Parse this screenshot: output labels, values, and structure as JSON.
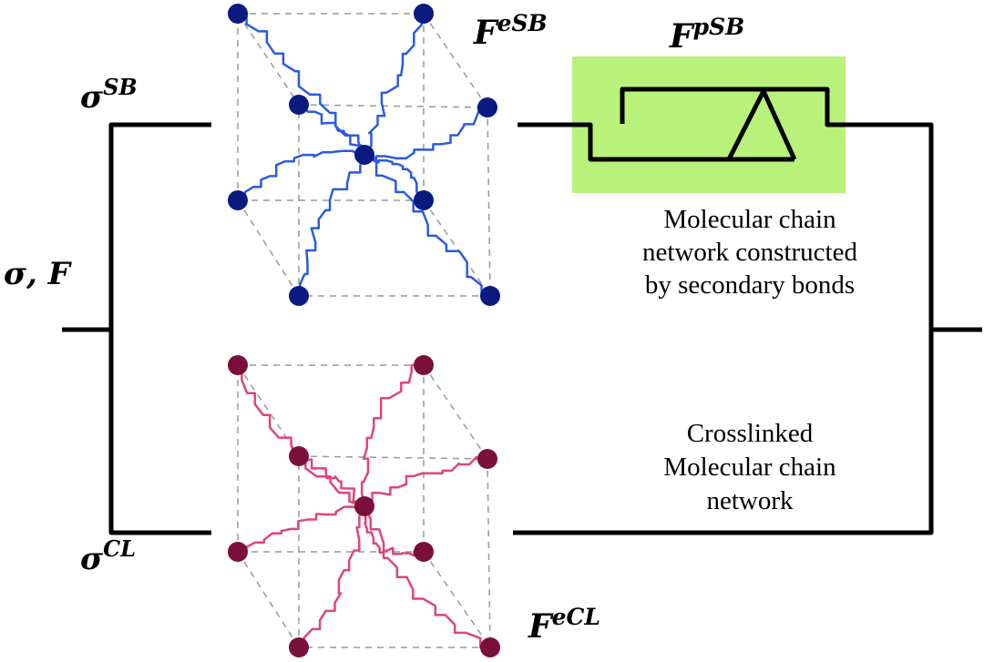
{
  "labels": {
    "sigma_sb": {
      "base": "σ",
      "sup": "SB"
    },
    "sigma_f": "σ, F",
    "sigma_cl": {
      "base": "σ",
      "sup": "CL"
    },
    "f_esb": {
      "base": "F",
      "sup": "eSB"
    },
    "f_psb": {
      "base": "F",
      "sup": "pSB"
    },
    "f_ecl": {
      "base": "F",
      "sup": "eCL"
    }
  },
  "captions": {
    "secondary": [
      "Molecular chain",
      "network constructed",
      "by secondary bonds"
    ],
    "crosslinked": [
      "Crosslinked",
      "Molecular chain",
      "network"
    ]
  },
  "colors": {
    "sb_node": "#0a1a80",
    "sb_chain": "#2a5be0",
    "cl_node": "#7a0f3c",
    "cl_chain": "#e0457a",
    "dashpot_box": "#b9f27a",
    "line": "#000000",
    "dash": "#999999"
  }
}
